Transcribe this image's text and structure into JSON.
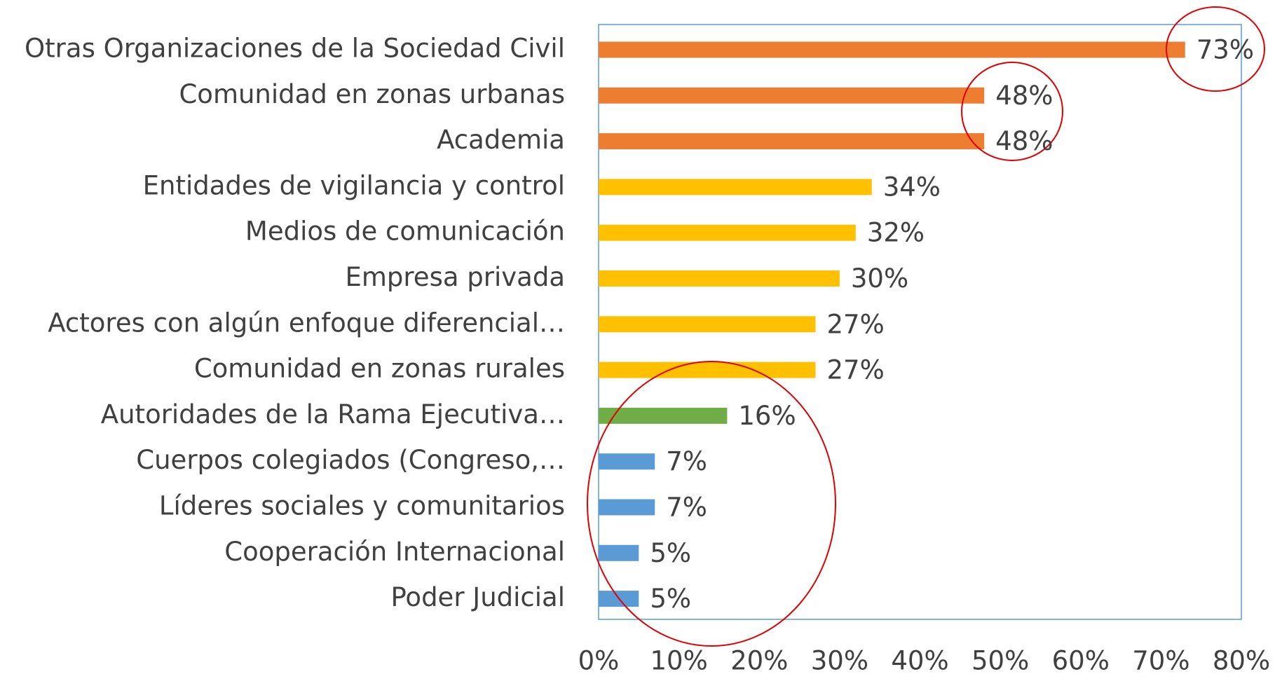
{
  "chart_data": {
    "type": "bar",
    "orientation": "horizontal",
    "categories": [
      "Otras Organizaciones de la Sociedad Civil",
      "Comunidad en zonas urbanas",
      "Academia",
      "Entidades de vigilancia y control",
      "Medios de comunicación",
      "Empresa privada",
      "Actores con algún enfoque diferencial…",
      "Comunidad en zonas rurales",
      "Autoridades de la Rama Ejecutiva…",
      "Cuerpos colegiados (Congreso,…",
      "Líderes sociales y comunitarios",
      "Cooperación Internacional",
      "Poder Judicial"
    ],
    "values": [
      73,
      48,
      48,
      34,
      32,
      30,
      27,
      27,
      16,
      7,
      7,
      5,
      5
    ],
    "value_labels": [
      "73%",
      "48%",
      "48%",
      "34%",
      "32%",
      "30%",
      "27%",
      "27%",
      "16%",
      "7%",
      "7%",
      "5%",
      "5%"
    ],
    "colors": [
      "#ed7d31",
      "#ed7d31",
      "#ed7d31",
      "#ffc000",
      "#ffc000",
      "#ffc000",
      "#ffc000",
      "#ffc000",
      "#70ad47",
      "#5b9bd5",
      "#5b9bd5",
      "#5b9bd5",
      "#5b9bd5"
    ],
    "xlim": [
      0,
      80
    ],
    "xticks": [
      {
        "value": 0,
        "label": "0%"
      },
      {
        "value": 10,
        "label": "10%"
      },
      {
        "value": 20,
        "label": "20%"
      },
      {
        "value": 30,
        "label": "30%"
      },
      {
        "value": 40,
        "label": "40%"
      },
      {
        "value": 50,
        "label": "50%"
      },
      {
        "value": 60,
        "label": "60%"
      },
      {
        "value": 70,
        "label": "70%"
      },
      {
        "value": 80,
        "label": "80%"
      }
    ],
    "grid": false
  }
}
